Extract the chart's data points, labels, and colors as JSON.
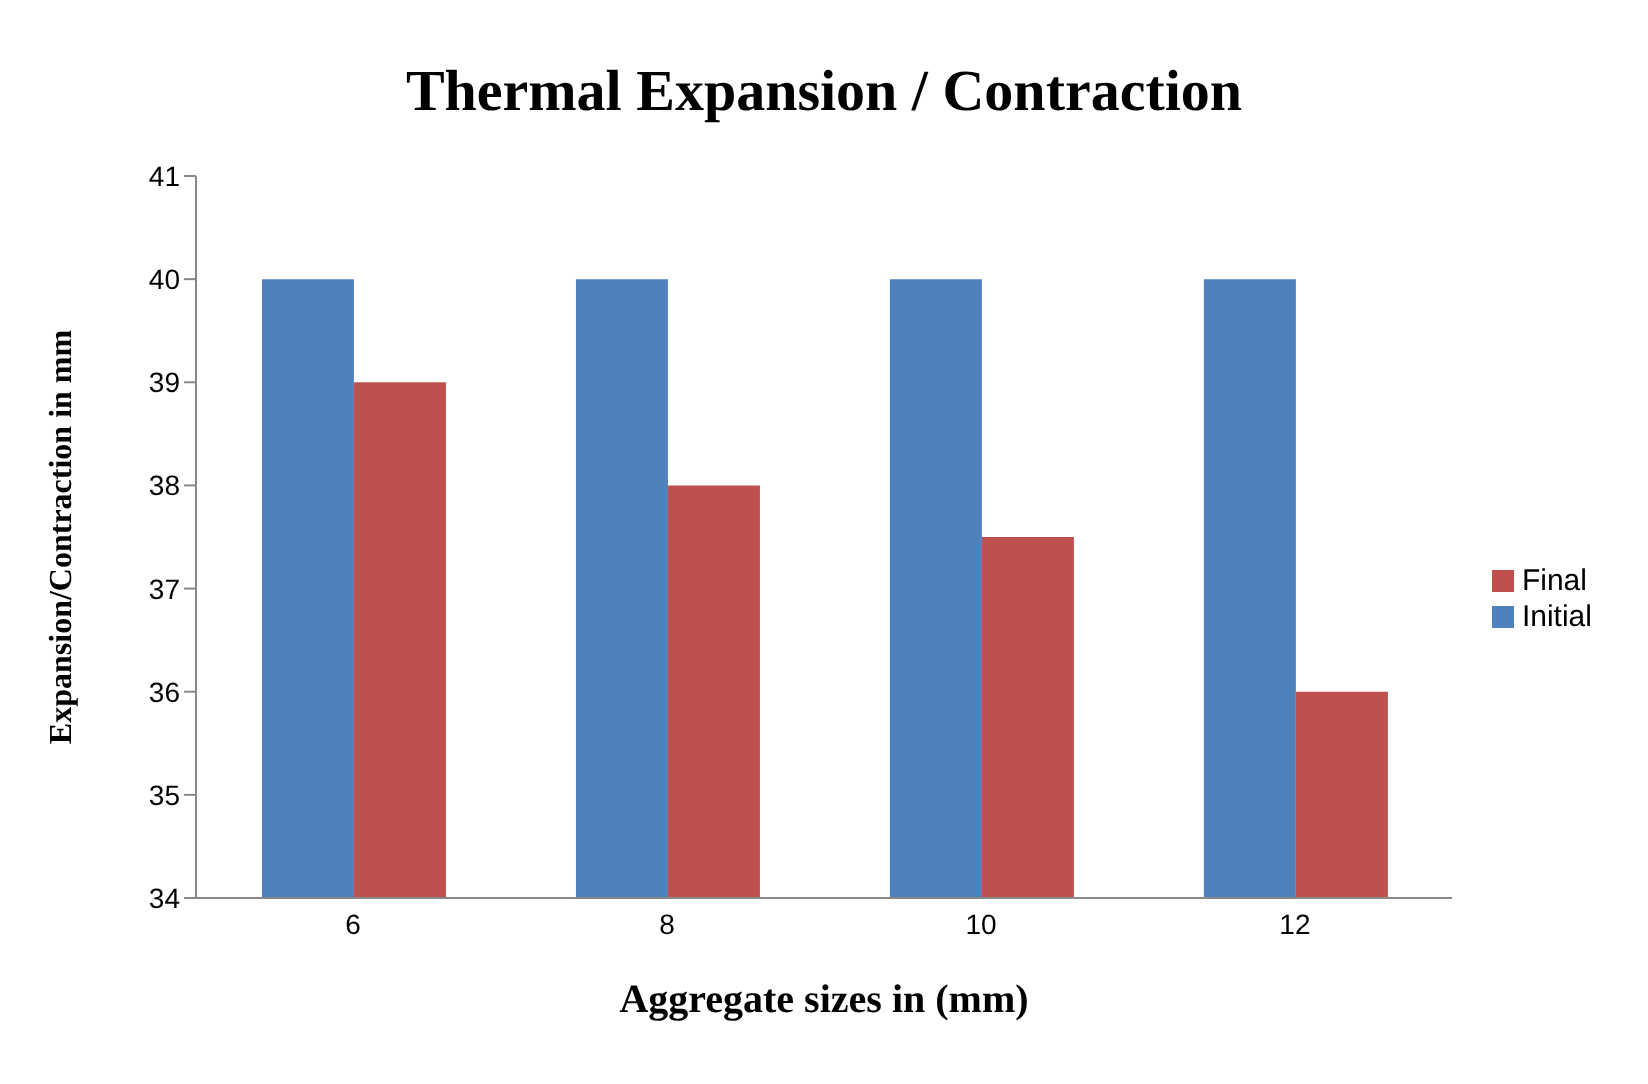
{
  "chart_data": {
    "type": "bar",
    "title": "Thermal Expansion / Contraction",
    "xlabel": "Aggregate sizes in (mm)",
    "ylabel": "Expansion/Contraction in mm",
    "categories": [
      "6",
      "8",
      "10",
      "12"
    ],
    "series": [
      {
        "name": "Initial",
        "color": "#4f81bd",
        "values": [
          40,
          40,
          40,
          40
        ]
      },
      {
        "name": "Final",
        "color": "#c0504d",
        "values": [
          39,
          38,
          37.5,
          36
        ]
      }
    ],
    "ylim": [
      34,
      41
    ],
    "yticks": [
      34,
      35,
      36,
      37,
      38,
      39,
      40,
      41
    ],
    "grid": false,
    "legend": "right"
  }
}
